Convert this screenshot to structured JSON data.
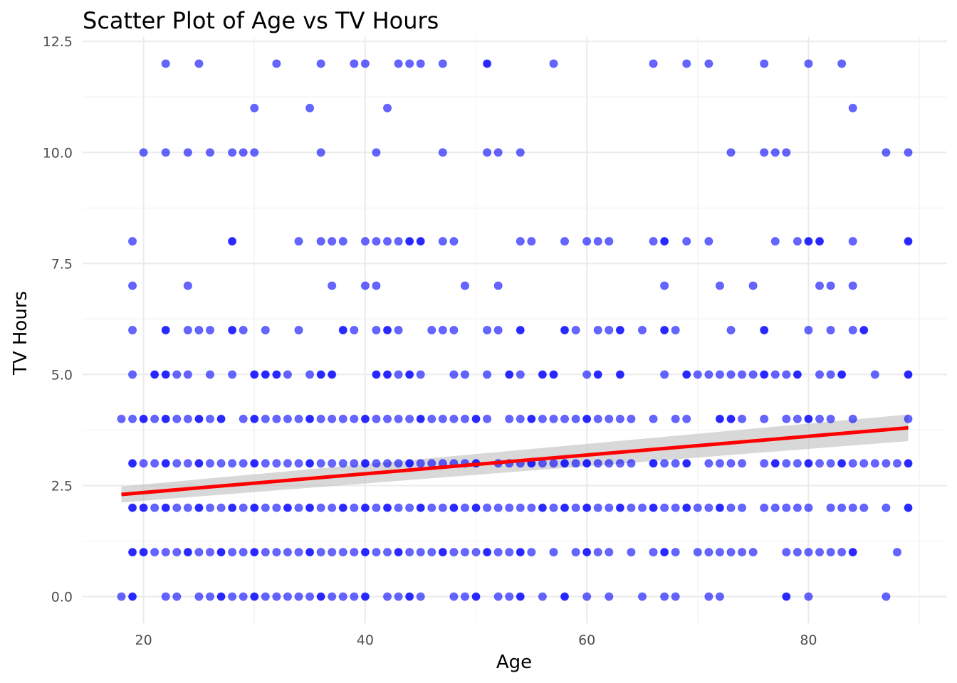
{
  "chart_data": {
    "type": "scatter",
    "title": "Scatter Plot of Age vs TV Hours",
    "xlabel": "Age",
    "ylabel": "TV Hours",
    "xlim": [
      14.5,
      92.5
    ],
    "ylim": [
      -0.6,
      12.6
    ],
    "x_ticks": [
      20,
      40,
      60,
      80
    ],
    "x_tick_labels": [
      "20",
      "40",
      "60",
      "80"
    ],
    "y_ticks": [
      0,
      2.5,
      5,
      7.5,
      10,
      12.5
    ],
    "y_tick_labels": [
      "0.0",
      "2.5",
      "5.0",
      "7.5",
      "10.0",
      "12.5"
    ],
    "grid": true,
    "legend": "none",
    "colors": {
      "points": "#0000ff",
      "trend": "#ff0000",
      "band": "#bebebe"
    },
    "trend_line": {
      "x": [
        18,
        89
      ],
      "y": [
        2.3,
        3.8
      ]
    },
    "confidence_band": {
      "x": [
        18,
        89
      ],
      "upper": [
        2.48,
        4.1
      ],
      "lower": [
        2.12,
        3.5
      ]
    },
    "rows": [
      {
        "y": 12,
        "x": [
          22,
          25,
          32,
          36,
          39,
          40,
          43,
          44,
          45,
          47,
          51,
          57,
          66,
          69,
          71,
          76,
          80,
          83
        ]
      },
      {
        "y": 11,
        "x": [
          30,
          35,
          42,
          84
        ]
      },
      {
        "y": 10,
        "x": [
          20,
          22,
          24,
          26,
          28,
          29,
          30,
          36,
          41,
          47,
          51,
          52,
          54,
          73,
          76,
          77,
          78,
          87,
          89
        ]
      },
      {
        "y": 8,
        "x": [
          19,
          28,
          34,
          36,
          37,
          38,
          40,
          41,
          42,
          43,
          44,
          45,
          47,
          48,
          54,
          55,
          58,
          60,
          61,
          62,
          66,
          67,
          69,
          71,
          77,
          79,
          80,
          81,
          84,
          89
        ]
      },
      {
        "y": 7,
        "x": [
          19,
          24,
          37,
          40,
          41,
          49,
          52,
          67,
          72,
          75,
          81,
          82,
          84
        ]
      },
      {
        "y": 6,
        "x": [
          19,
          22,
          24,
          25,
          26,
          28,
          29,
          31,
          34,
          38,
          39,
          41,
          42,
          43,
          46,
          47,
          48,
          51,
          52,
          54,
          58,
          59,
          61,
          62,
          63,
          65,
          67,
          68,
          73,
          76,
          80,
          82,
          84,
          85
        ]
      },
      {
        "y": 5,
        "x": [
          19,
          21,
          22,
          23,
          24,
          26,
          28,
          30,
          31,
          32,
          33,
          35,
          36,
          37,
          41,
          42,
          43,
          44,
          45,
          48,
          49,
          51,
          53,
          54,
          56,
          57,
          60,
          61,
          63,
          67,
          69,
          70,
          71,
          72,
          73,
          74,
          75,
          76,
          77,
          78,
          79,
          81,
          82,
          83,
          86,
          89
        ]
      },
      {
        "y": 4,
        "x": [
          18,
          19,
          20,
          21,
          22,
          23,
          24,
          25,
          26,
          27,
          29,
          30,
          31,
          32,
          33,
          34,
          35,
          36,
          37,
          38,
          39,
          40,
          41,
          42,
          43,
          44,
          45,
          46,
          47,
          48,
          49,
          50,
          51,
          53,
          54,
          55,
          56,
          57,
          58,
          59,
          60,
          61,
          62,
          63,
          64,
          66,
          68,
          69,
          72,
          73,
          74,
          76,
          78,
          79,
          80,
          81,
          82,
          84,
          89
        ]
      },
      {
        "y": 3,
        "x": [
          19,
          20,
          21,
          22,
          23,
          24,
          25,
          26,
          27,
          28,
          29,
          30,
          31,
          32,
          33,
          34,
          35,
          36,
          37,
          38,
          39,
          40,
          41,
          42,
          43,
          44,
          45,
          46,
          47,
          48,
          49,
          50,
          52,
          53,
          54,
          55,
          56,
          57,
          58,
          59,
          60,
          61,
          62,
          63,
          64,
          66,
          67,
          68,
          69,
          71,
          72,
          73,
          74,
          76,
          77,
          78,
          79,
          80,
          81,
          82,
          83,
          84,
          85,
          86,
          87,
          88,
          89
        ]
      },
      {
        "y": 2,
        "x": [
          19,
          20,
          21,
          22,
          23,
          24,
          25,
          26,
          27,
          28,
          29,
          30,
          31,
          32,
          33,
          34,
          35,
          36,
          37,
          38,
          39,
          40,
          41,
          42,
          43,
          44,
          45,
          46,
          47,
          48,
          49,
          50,
          51,
          52,
          53,
          54,
          55,
          56,
          57,
          58,
          59,
          60,
          61,
          62,
          63,
          64,
          65,
          66,
          67,
          68,
          69,
          70,
          71,
          72,
          73,
          74,
          76,
          77,
          78,
          79,
          80,
          82,
          83,
          84,
          85,
          87,
          89
        ]
      },
      {
        "y": 1,
        "x": [
          19,
          20,
          21,
          22,
          23,
          24,
          25,
          26,
          27,
          28,
          29,
          30,
          31,
          32,
          33,
          34,
          35,
          36,
          37,
          38,
          39,
          40,
          41,
          42,
          43,
          44,
          45,
          46,
          47,
          48,
          49,
          50,
          51,
          52,
          53,
          54,
          55,
          57,
          59,
          60,
          61,
          62,
          64,
          66,
          67,
          68,
          70,
          71,
          72,
          73,
          74,
          75,
          78,
          79,
          80,
          81,
          82,
          83,
          84,
          88
        ]
      },
      {
        "y": 0,
        "x": [
          18,
          19,
          22,
          23,
          25,
          26,
          27,
          28,
          29,
          30,
          31,
          32,
          33,
          34,
          35,
          36,
          37,
          38,
          39,
          40,
          42,
          43,
          44,
          45,
          48,
          49,
          50,
          52,
          53,
          54,
          56,
          58,
          60,
          62,
          65,
          67,
          68,
          71,
          72,
          78,
          80,
          87
        ]
      }
    ],
    "dense_points": [
      [
        51,
        12
      ],
      [
        28,
        8
      ],
      [
        44,
        8
      ],
      [
        45,
        8
      ],
      [
        67,
        8
      ],
      [
        80,
        8
      ],
      [
        81,
        8
      ],
      [
        89,
        8
      ],
      [
        22,
        6
      ],
      [
        28,
        6
      ],
      [
        38,
        6
      ],
      [
        42,
        6
      ],
      [
        54,
        6
      ],
      [
        58,
        6
      ],
      [
        63,
        6
      ],
      [
        67,
        6
      ],
      [
        76,
        6
      ],
      [
        85,
        6
      ],
      [
        21,
        5
      ],
      [
        22,
        5
      ],
      [
        30,
        5
      ],
      [
        31,
        5
      ],
      [
        32,
        5
      ],
      [
        36,
        5
      ],
      [
        37,
        5
      ],
      [
        41,
        5
      ],
      [
        42,
        5
      ],
      [
        44,
        5
      ],
      [
        53,
        5
      ],
      [
        56,
        5
      ],
      [
        57,
        5
      ],
      [
        61,
        5
      ],
      [
        63,
        5
      ],
      [
        69,
        5
      ],
      [
        76,
        5
      ],
      [
        79,
        5
      ],
      [
        83,
        5
      ],
      [
        89,
        5
      ],
      [
        20,
        4
      ],
      [
        22,
        4
      ],
      [
        25,
        4
      ],
      [
        27,
        4
      ],
      [
        30,
        4
      ],
      [
        35,
        4
      ],
      [
        40,
        4
      ],
      [
        45,
        4
      ],
      [
        50,
        4
      ],
      [
        55,
        4
      ],
      [
        60,
        4
      ],
      [
        72,
        4
      ],
      [
        73,
        4
      ],
      [
        80,
        4
      ],
      [
        19,
        3
      ],
      [
        22,
        3
      ],
      [
        25,
        3
      ],
      [
        30,
        3
      ],
      [
        35,
        3
      ],
      [
        40,
        3
      ],
      [
        44,
        3
      ],
      [
        50,
        3
      ],
      [
        55,
        3
      ],
      [
        58,
        3
      ],
      [
        60,
        3
      ],
      [
        66,
        3
      ],
      [
        69,
        3
      ],
      [
        77,
        3
      ],
      [
        80,
        3
      ],
      [
        83,
        3
      ],
      [
        89,
        3
      ],
      [
        19,
        2
      ],
      [
        20,
        2
      ],
      [
        22,
        2
      ],
      [
        25,
        2
      ],
      [
        28,
        2
      ],
      [
        30,
        2
      ],
      [
        33,
        2
      ],
      [
        35,
        2
      ],
      [
        38,
        2
      ],
      [
        40,
        2
      ],
      [
        42,
        2
      ],
      [
        45,
        2
      ],
      [
        48,
        2
      ],
      [
        50,
        2
      ],
      [
        56,
        2
      ],
      [
        58,
        2
      ],
      [
        60,
        2
      ],
      [
        63,
        2
      ],
      [
        66,
        2
      ],
      [
        69,
        2
      ],
      [
        72,
        2
      ],
      [
        89,
        2
      ],
      [
        19,
        1
      ],
      [
        20,
        1
      ],
      [
        24,
        1
      ],
      [
        27,
        1
      ],
      [
        30,
        1
      ],
      [
        35,
        1
      ],
      [
        40,
        1
      ],
      [
        43,
        1
      ],
      [
        47,
        1
      ],
      [
        51,
        1
      ],
      [
        54,
        1
      ],
      [
        60,
        1
      ],
      [
        67,
        1
      ],
      [
        84,
        1
      ],
      [
        19,
        0
      ],
      [
        27,
        0
      ],
      [
        30,
        0
      ],
      [
        36,
        0
      ],
      [
        40,
        0
      ],
      [
        44,
        0
      ],
      [
        50,
        0
      ],
      [
        54,
        0
      ],
      [
        58,
        0
      ],
      [
        78,
        0
      ]
    ]
  }
}
